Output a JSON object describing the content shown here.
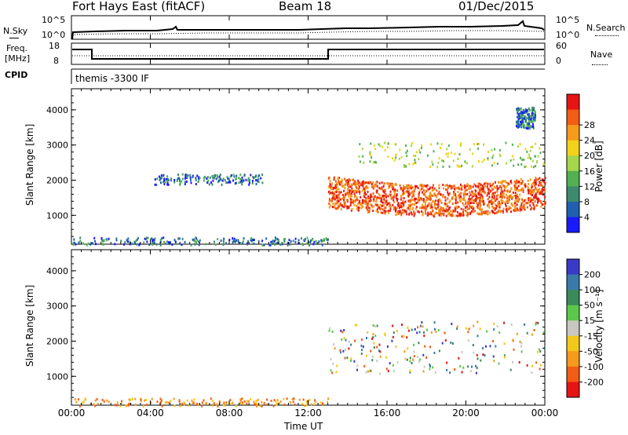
{
  "header": {
    "station": "Fort Hays East (fitACF)",
    "beam": "Beam 18",
    "date": "01/Dec/2015"
  },
  "strip": {
    "nsky_label": "N.Sky",
    "nsky_ticks": [
      "10^5",
      "10^0"
    ],
    "nsearch_label": "N.Search",
    "nsearch_ticks": [
      "10^5",
      "10^0"
    ],
    "freq_label": "Freq.",
    "freq_unit": "[MHz]",
    "freq_ticks": [
      "18",
      "8"
    ],
    "nave_label": "Nave",
    "nave_ticks": [
      "60",
      "0"
    ],
    "cpid_label": "CPID",
    "cpid_text": "themis -3300 IF"
  },
  "time_axis": {
    "label": "Time UT",
    "ticks": [
      "00:00",
      "04:00",
      "08:00",
      "12:00",
      "16:00",
      "20:00",
      "00:00"
    ]
  },
  "colors": {
    "power": [
      "#1a1aff",
      "#2060b0",
      "#3d8a6e",
      "#52b052",
      "#a6d64a",
      "#f2d21a",
      "#f59a1a",
      "#f25c14",
      "#e61414"
    ],
    "velocity": [
      "#3a3ac8",
      "#3a7aa8",
      "#3a8a5a",
      "#5cc84a",
      "#c8c8c0",
      "#f2c81a",
      "#f59a1a",
      "#f25c14",
      "#e61414"
    ]
  },
  "chart_data": [
    {
      "type": "heatmap",
      "title": "Power",
      "ylabel": "Slant Range [km]",
      "xlabel": "Time UT",
      "x_range_hours": [
        0,
        24
      ],
      "ylim": [
        180,
        4600
      ],
      "y_ticks": [
        "1000",
        "2000",
        "3000",
        "4000"
      ],
      "colorbar": {
        "label": "Power [dB]",
        "ticks": [
          "4",
          "8",
          "12",
          "16",
          "20",
          "24",
          "28"
        ]
      },
      "features": [
        {
          "t": [
            0.0,
            13.0
          ],
          "range_km": [
            180,
            400
          ],
          "note": "sparse low-level ground echoes"
        },
        {
          "t": [
            4.2,
            9.8
          ],
          "range_km": [
            1900,
            2200
          ],
          "note": "weak scattered echoes ~4-8 dB"
        },
        {
          "t": [
            13.0,
            24.0
          ],
          "range_km": [
            1100,
            2400
          ],
          "note": "strong band 20-30 dB"
        },
        {
          "t": [
            14.5,
            24.0
          ],
          "range_km": [
            2400,
            3100
          ],
          "note": "upper band 12-24 dB"
        },
        {
          "t": [
            22.5,
            23.5
          ],
          "range_km": [
            3500,
            4100
          ],
          "note": "isolated patch"
        }
      ]
    },
    {
      "type": "heatmap",
      "title": "Velocity",
      "ylabel": "Slant Range [km]",
      "xlabel": "Time UT",
      "x_range_hours": [
        0,
        24
      ],
      "ylim": [
        180,
        4600
      ],
      "y_ticks": [
        "1000",
        "2000",
        "3000",
        "4000"
      ],
      "colorbar": {
        "label": "Velocity [m s⁻¹]",
        "ticks": [
          "200",
          "100",
          "50",
          "15",
          "-15",
          "-50",
          "-100",
          "-200"
        ]
      },
      "features": [
        {
          "t": [
            13.0,
            24.0
          ],
          "range_km": [
            1100,
            2600
          ],
          "note": "mostly ground scatter (grey)"
        },
        {
          "t": [
            0.0,
            13.0
          ],
          "range_km": [
            180,
            400
          ],
          "note": "sparse negative velocities"
        }
      ]
    }
  ]
}
